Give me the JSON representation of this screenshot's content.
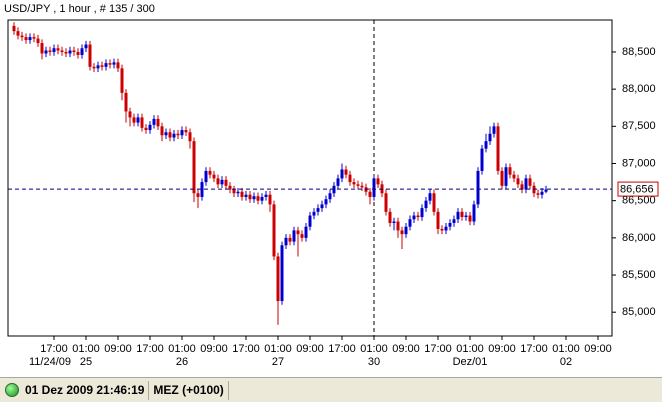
{
  "chart_data": {
    "type": "candlestick",
    "title": "USD/JPY , 1 hour , # 135 / 300",
    "up_color": "#0000cc",
    "down_color": "#cc0000",
    "xlim": [
      -1.5,
      149.5
    ],
    "ylim": [
      84.68,
      88.93
    ],
    "yticks": [
      {
        "value": 85,
        "label": "85,000"
      },
      {
        "value": 85.5,
        "label": "85,500"
      },
      {
        "value": 86,
        "label": "86,000"
      },
      {
        "value": 86.5,
        "label": "86,500"
      },
      {
        "value": 87,
        "label": "87,000"
      },
      {
        "value": 87.5,
        "label": "87,500"
      },
      {
        "value": 88,
        "label": "88,000"
      },
      {
        "value": 88.5,
        "label": "88,500"
      }
    ],
    "xticks": [
      {
        "value": 10,
        "label": "17:00"
      },
      {
        "value": 18,
        "label": "01:00"
      },
      {
        "value": 26,
        "label": "09:00"
      },
      {
        "value": 34,
        "label": "17:00"
      },
      {
        "value": 42,
        "label": "01:00"
      },
      {
        "value": 50,
        "label": "09:00"
      },
      {
        "value": 58,
        "label": "17:00"
      },
      {
        "value": 66,
        "label": "01:00"
      },
      {
        "value": 74,
        "label": "09:00"
      },
      {
        "value": 82,
        "label": "17:00"
      },
      {
        "value": 90,
        "label": "01:00"
      },
      {
        "value": 98,
        "label": "09:00"
      },
      {
        "value": 106,
        "label": "17:00"
      },
      {
        "value": 114,
        "label": "01:00"
      },
      {
        "value": 122,
        "label": "09:00"
      },
      {
        "value": 130,
        "label": "17:00"
      },
      {
        "value": 138,
        "label": "01:00"
      },
      {
        "value": 146,
        "label": "09:00"
      }
    ],
    "date_ticks": [
      {
        "value": 9,
        "label": "11/24/09"
      },
      {
        "value": 18,
        "label": "25"
      },
      {
        "value": 42,
        "label": "26"
      },
      {
        "value": 66,
        "label": "27"
      },
      {
        "value": 90,
        "label": "30"
      },
      {
        "value": 114,
        "label": "Dez/01"
      },
      {
        "value": 138,
        "label": "02"
      }
    ],
    "current_price": {
      "value": 86.656,
      "label": "86,656"
    },
    "open": [
      88.85,
      88.78,
      88.72,
      88.7,
      88.66,
      88.7,
      88.68,
      88.62,
      88.48,
      88.52,
      88.5,
      88.55,
      88.52,
      88.5,
      88.48,
      88.52,
      88.5,
      88.46,
      88.55,
      88.6,
      88.3,
      88.28,
      88.32,
      88.3,
      88.35,
      88.33,
      88.36,
      88.28,
      87.95,
      87.7,
      87.62,
      87.55,
      87.62,
      87.48,
      87.45,
      87.52,
      87.6,
      87.5,
      87.38,
      87.42,
      87.35,
      87.4,
      87.38,
      87.45,
      87.42,
      87.3,
      86.6,
      86.55,
      86.75,
      86.9,
      86.85,
      86.8,
      86.72,
      86.78,
      86.7,
      86.65,
      86.6,
      86.62,
      86.55,
      86.58,
      86.52,
      86.56,
      86.5,
      86.55,
      86.58,
      86.45,
      85.75,
      85.15,
      85.9,
      86.0,
      85.95,
      86.1,
      86.05,
      86.0,
      86.15,
      86.3,
      86.35,
      86.4,
      86.45,
      86.52,
      86.6,
      86.7,
      86.8,
      86.92,
      86.85,
      86.75,
      86.72,
      86.7,
      86.68,
      86.62,
      86.55,
      86.8,
      86.72,
      86.6,
      86.35,
      86.2,
      86.22,
      86.1,
      86.05,
      86.15,
      86.25,
      86.3,
      86.28,
      86.4,
      86.5,
      86.6,
      86.35,
      86.12,
      86.1,
      86.15,
      86.2,
      86.25,
      86.35,
      86.28,
      86.3,
      86.22,
      86.45,
      86.9,
      87.2,
      87.3,
      87.4,
      87.5,
      86.9,
      86.7,
      86.95,
      86.85,
      86.8,
      86.72,
      86.65,
      86.8,
      86.7,
      86.6,
      86.58,
      86.62
    ],
    "high": [
      88.9,
      88.83,
      88.77,
      88.75,
      88.75,
      88.75,
      88.73,
      88.67,
      88.57,
      88.57,
      88.6,
      88.6,
      88.57,
      88.55,
      88.57,
      88.57,
      88.55,
      88.6,
      88.65,
      88.65,
      88.35,
      88.37,
      88.37,
      88.4,
      88.4,
      88.41,
      88.41,
      88.33,
      88.0,
      87.75,
      87.67,
      87.67,
      87.67,
      87.53,
      87.57,
      87.65,
      87.65,
      87.55,
      87.47,
      87.47,
      87.45,
      87.45,
      87.5,
      87.5,
      87.47,
      87.35,
      86.65,
      86.8,
      86.95,
      86.95,
      86.9,
      86.85,
      86.83,
      86.83,
      86.75,
      86.7,
      86.67,
      86.67,
      86.63,
      86.63,
      86.61,
      86.61,
      86.6,
      86.63,
      86.63,
      86.5,
      85.8,
      85.95,
      86.05,
      86.05,
      86.15,
      86.15,
      86.1,
      86.2,
      86.35,
      86.4,
      86.45,
      86.5,
      86.57,
      86.65,
      86.75,
      86.85,
      87.0,
      86.97,
      86.9,
      86.8,
      86.77,
      86.75,
      86.73,
      86.67,
      86.85,
      86.85,
      86.77,
      86.65,
      86.4,
      86.27,
      86.27,
      86.15,
      86.2,
      86.3,
      86.35,
      86.35,
      86.45,
      86.55,
      86.65,
      86.65,
      86.4,
      86.17,
      86.2,
      86.25,
      86.3,
      86.4,
      86.4,
      86.35,
      86.35,
      86.5,
      86.95,
      87.25,
      87.4,
      87.5,
      87.55,
      87.55,
      86.95,
      87.0,
      87.0,
      86.9,
      86.85,
      86.77,
      86.85,
      86.85,
      86.75,
      86.65,
      86.67,
      86.7
    ],
    "low": [
      88.73,
      88.67,
      88.65,
      88.61,
      88.61,
      88.63,
      88.57,
      88.4,
      88.43,
      88.45,
      88.45,
      88.47,
      88.45,
      88.43,
      88.43,
      88.45,
      88.41,
      88.41,
      88.5,
      88.25,
      88.23,
      88.23,
      88.25,
      88.25,
      88.28,
      88.28,
      88.23,
      87.85,
      87.55,
      87.5,
      87.5,
      87.5,
      87.43,
      87.4,
      87.4,
      87.47,
      87.45,
      87.3,
      87.33,
      87.3,
      87.3,
      87.33,
      87.33,
      87.37,
      87.2,
      86.48,
      86.4,
      86.5,
      86.7,
      86.8,
      86.75,
      86.67,
      86.67,
      86.65,
      86.6,
      86.55,
      86.55,
      86.5,
      86.5,
      86.47,
      86.47,
      86.45,
      86.45,
      86.5,
      86.35,
      85.7,
      84.83,
      85.1,
      85.85,
      85.9,
      85.9,
      85.75,
      85.95,
      85.95,
      86.1,
      86.25,
      86.3,
      86.35,
      86.4,
      86.47,
      86.55,
      86.65,
      86.75,
      86.8,
      86.7,
      86.67,
      86.65,
      86.63,
      86.57,
      86.45,
      86.5,
      86.67,
      86.55,
      86.3,
      86.15,
      86.1,
      86.0,
      85.85,
      86.0,
      86.1,
      86.2,
      86.23,
      86.23,
      86.35,
      86.45,
      86.3,
      86.05,
      86.05,
      86.05,
      86.1,
      86.15,
      86.2,
      86.23,
      86.23,
      86.17,
      86.17,
      86.4,
      86.85,
      87.15,
      87.25,
      87.35,
      86.85,
      86.65,
      86.65,
      86.8,
      86.75,
      86.67,
      86.6,
      86.6,
      86.65,
      86.55,
      86.53,
      86.53,
      86.6
    ],
    "close": [
      88.78,
      88.72,
      88.7,
      88.66,
      88.7,
      88.68,
      88.62,
      88.48,
      88.52,
      88.5,
      88.55,
      88.52,
      88.5,
      88.48,
      88.52,
      88.5,
      88.46,
      88.55,
      88.6,
      88.3,
      88.28,
      88.32,
      88.3,
      88.35,
      88.33,
      88.36,
      88.28,
      87.95,
      87.7,
      87.62,
      87.55,
      87.62,
      87.48,
      87.45,
      87.52,
      87.6,
      87.5,
      87.38,
      87.42,
      87.35,
      87.4,
      87.38,
      87.45,
      87.42,
      87.3,
      86.6,
      86.55,
      86.75,
      86.9,
      86.85,
      86.8,
      86.72,
      86.78,
      86.7,
      86.65,
      86.6,
      86.62,
      86.55,
      86.58,
      86.52,
      86.56,
      86.5,
      86.55,
      86.58,
      86.45,
      85.75,
      85.15,
      85.9,
      86.0,
      85.95,
      86.1,
      86.05,
      86.0,
      86.15,
      86.3,
      86.35,
      86.4,
      86.45,
      86.52,
      86.6,
      86.7,
      86.8,
      86.92,
      86.85,
      86.75,
      86.72,
      86.7,
      86.68,
      86.62,
      86.55,
      86.8,
      86.72,
      86.6,
      86.35,
      86.2,
      86.22,
      86.1,
      86.05,
      86.15,
      86.25,
      86.3,
      86.28,
      86.4,
      86.5,
      86.6,
      86.35,
      86.12,
      86.1,
      86.15,
      86.2,
      86.25,
      86.35,
      86.28,
      86.3,
      86.22,
      86.45,
      86.9,
      87.2,
      87.3,
      87.4,
      87.5,
      86.9,
      86.7,
      86.95,
      86.85,
      86.8,
      86.72,
      86.65,
      86.8,
      86.7,
      86.6,
      86.58,
      86.62,
      86.65
    ]
  },
  "status": {
    "datetime": "01 Dez 2009 21:46:19",
    "timezone": "MEZ (+0100)"
  }
}
